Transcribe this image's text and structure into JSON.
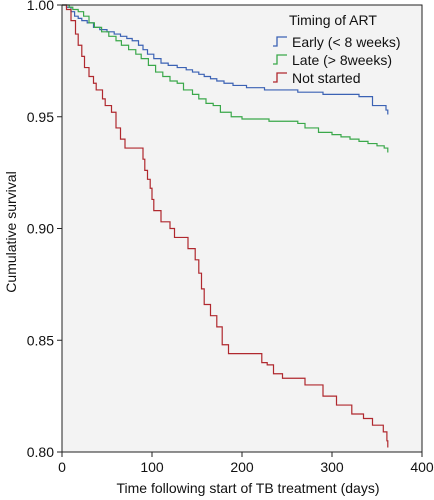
{
  "chart_data": {
    "type": "line",
    "step": true,
    "title": "",
    "xlabel": "Time following start of TB treatment (days)",
    "ylabel": "Cumulative survival",
    "xlim": [
      0,
      400
    ],
    "ylim": [
      0.8,
      1.0
    ],
    "xticks": [
      0,
      100,
      200,
      300,
      400
    ],
    "yticks": [
      0.8,
      0.85,
      0.9,
      0.95,
      1.0
    ],
    "xtick_labels": [
      "0",
      "100",
      "200",
      "300",
      "400"
    ],
    "ytick_labels": [
      "0.80",
      "0.85",
      "0.90",
      "0.95",
      "1.00"
    ],
    "grid": false,
    "legend": {
      "title": "Timing of ART",
      "placement": "top-right"
    },
    "background": "#f3f3f3",
    "series": [
      {
        "name": "Early (< 8 weeks)",
        "color": "#3b62b4",
        "points": [
          [
            0,
            1.0
          ],
          [
            5,
            0.999
          ],
          [
            10,
            0.997
          ],
          [
            14,
            0.995
          ],
          [
            18,
            0.994
          ],
          [
            22,
            0.993
          ],
          [
            28,
            0.992
          ],
          [
            35,
            0.99
          ],
          [
            42,
            0.989
          ],
          [
            50,
            0.988
          ],
          [
            58,
            0.987
          ],
          [
            65,
            0.986
          ],
          [
            72,
            0.985
          ],
          [
            78,
            0.984
          ],
          [
            85,
            0.982
          ],
          [
            90,
            0.98
          ],
          [
            95,
            0.978
          ],
          [
            102,
            0.976
          ],
          [
            110,
            0.974
          ],
          [
            118,
            0.973
          ],
          [
            128,
            0.972
          ],
          [
            138,
            0.971
          ],
          [
            145,
            0.97
          ],
          [
            152,
            0.969
          ],
          [
            158,
            0.968
          ],
          [
            165,
            0.967
          ],
          [
            172,
            0.966
          ],
          [
            180,
            0.965
          ],
          [
            190,
            0.964
          ],
          [
            205,
            0.963
          ],
          [
            225,
            0.962
          ],
          [
            262,
            0.961
          ],
          [
            290,
            0.96
          ],
          [
            330,
            0.959
          ],
          [
            345,
            0.955
          ],
          [
            360,
            0.953
          ],
          [
            362,
            0.951
          ]
        ]
      },
      {
        "name": "Late (> 8weeks)",
        "color": "#3aa84a",
        "points": [
          [
            0,
            1.0
          ],
          [
            8,
            0.999
          ],
          [
            12,
            0.998
          ],
          [
            18,
            0.997
          ],
          [
            24,
            0.995
          ],
          [
            30,
            0.992
          ],
          [
            36,
            0.99
          ],
          [
            44,
            0.988
          ],
          [
            52,
            0.986
          ],
          [
            60,
            0.984
          ],
          [
            66,
            0.982
          ],
          [
            74,
            0.98
          ],
          [
            82,
            0.978
          ],
          [
            88,
            0.976
          ],
          [
            96,
            0.973
          ],
          [
            104,
            0.97
          ],
          [
            112,
            0.968
          ],
          [
            120,
            0.966
          ],
          [
            128,
            0.965
          ],
          [
            135,
            0.962
          ],
          [
            145,
            0.96
          ],
          [
            152,
            0.958
          ],
          [
            160,
            0.956
          ],
          [
            168,
            0.955
          ],
          [
            176,
            0.952
          ],
          [
            188,
            0.95
          ],
          [
            200,
            0.949
          ],
          [
            230,
            0.948
          ],
          [
            262,
            0.947
          ],
          [
            270,
            0.945
          ],
          [
            285,
            0.943
          ],
          [
            300,
            0.942
          ],
          [
            310,
            0.941
          ],
          [
            320,
            0.94
          ],
          [
            330,
            0.939
          ],
          [
            340,
            0.938
          ],
          [
            350,
            0.937
          ],
          [
            358,
            0.936
          ],
          [
            362,
            0.934
          ]
        ]
      },
      {
        "name": "Not started",
        "color": "#b0282e",
        "points": [
          [
            0,
            1.0
          ],
          [
            5,
            0.998
          ],
          [
            10,
            0.993
          ],
          [
            15,
            0.987
          ],
          [
            18,
            0.982
          ],
          [
            22,
            0.977
          ],
          [
            25,
            0.972
          ],
          [
            30,
            0.968
          ],
          [
            35,
            0.965
          ],
          [
            38,
            0.962
          ],
          [
            45,
            0.958
          ],
          [
            48,
            0.955
          ],
          [
            55,
            0.952
          ],
          [
            60,
            0.945
          ],
          [
            65,
            0.94
          ],
          [
            70,
            0.936
          ],
          [
            90,
            0.931
          ],
          [
            92,
            0.926
          ],
          [
            95,
            0.922
          ],
          [
            98,
            0.918
          ],
          [
            100,
            0.913
          ],
          [
            102,
            0.908
          ],
          [
            110,
            0.903
          ],
          [
            120,
            0.9
          ],
          [
            125,
            0.896
          ],
          [
            140,
            0.891
          ],
          [
            148,
            0.886
          ],
          [
            152,
            0.88
          ],
          [
            155,
            0.873
          ],
          [
            158,
            0.866
          ],
          [
            165,
            0.861
          ],
          [
            172,
            0.856
          ],
          [
            178,
            0.848
          ],
          [
            185,
            0.844
          ],
          [
            222,
            0.84
          ],
          [
            228,
            0.839
          ],
          [
            235,
            0.835
          ],
          [
            245,
            0.833
          ],
          [
            270,
            0.83
          ],
          [
            290,
            0.825
          ],
          [
            305,
            0.821
          ],
          [
            322,
            0.817
          ],
          [
            335,
            0.815
          ],
          [
            345,
            0.812
          ],
          [
            357,
            0.809
          ],
          [
            361,
            0.805
          ],
          [
            362,
            0.802
          ]
        ]
      }
    ]
  }
}
